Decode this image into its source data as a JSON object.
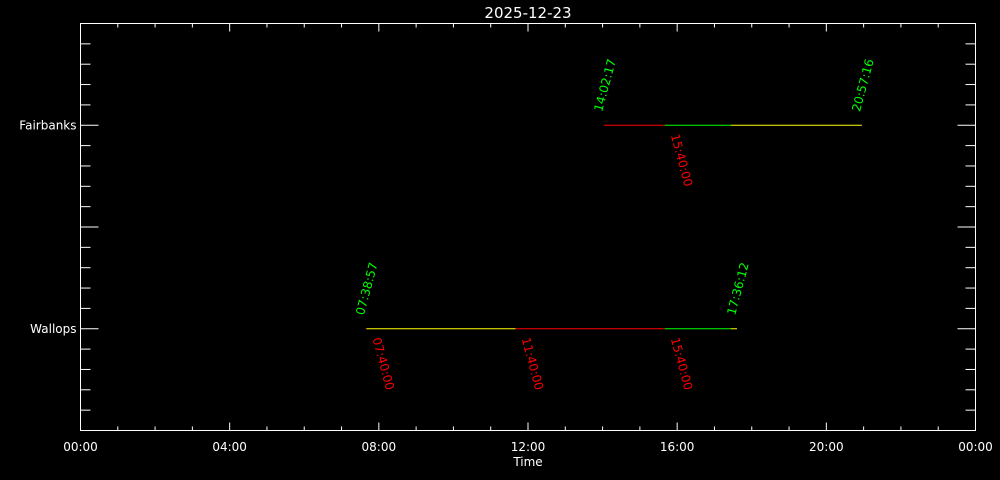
{
  "chart_data": {
    "type": "timeline",
    "title": "2025-12-23",
    "xlabel": "Time",
    "ylabel": "",
    "xlim": [
      "00:00",
      "24:00"
    ],
    "x_tick_labels": [
      "00:00",
      "04:00",
      "08:00",
      "12:00",
      "16:00",
      "20:00",
      "00:00"
    ],
    "ylim": [
      0.5,
      2.5
    ],
    "grid": false,
    "background": "#000000",
    "axis_color": "#ffffff",
    "colors": {
      "red": "#ff0000",
      "green": "#00ff00",
      "yellow": "#ffff00"
    },
    "series": [
      {
        "name": "Fairbanks",
        "y": 2,
        "start_label": "14:02:17",
        "end_label": "20:57:16",
        "segments": [
          {
            "start": "14:02:17",
            "end": "15:40:00",
            "color": "red"
          },
          {
            "start": "15:40:00",
            "end": "17:26:00",
            "color": "green"
          },
          {
            "start": "17:26:00",
            "end": "20:57:16",
            "color": "yellow"
          }
        ],
        "marker_labels": [
          "15:40:00"
        ]
      },
      {
        "name": "Wallops",
        "y": 1,
        "start_label": "07:38:57",
        "end_label": "17:36:12",
        "segments": [
          {
            "start": "07:38:57",
            "end": "07:40:00",
            "color": "red"
          },
          {
            "start": "07:40:00",
            "end": "11:40:00",
            "color": "yellow"
          },
          {
            "start": "11:40:00",
            "end": "15:40:00",
            "color": "red"
          },
          {
            "start": "15:40:00",
            "end": "17:26:00",
            "color": "green"
          },
          {
            "start": "17:26:00",
            "end": "17:36:12",
            "color": "yellow"
          }
        ],
        "marker_labels": [
          "07:40:00",
          "11:40:00",
          "15:40:00"
        ]
      }
    ]
  }
}
